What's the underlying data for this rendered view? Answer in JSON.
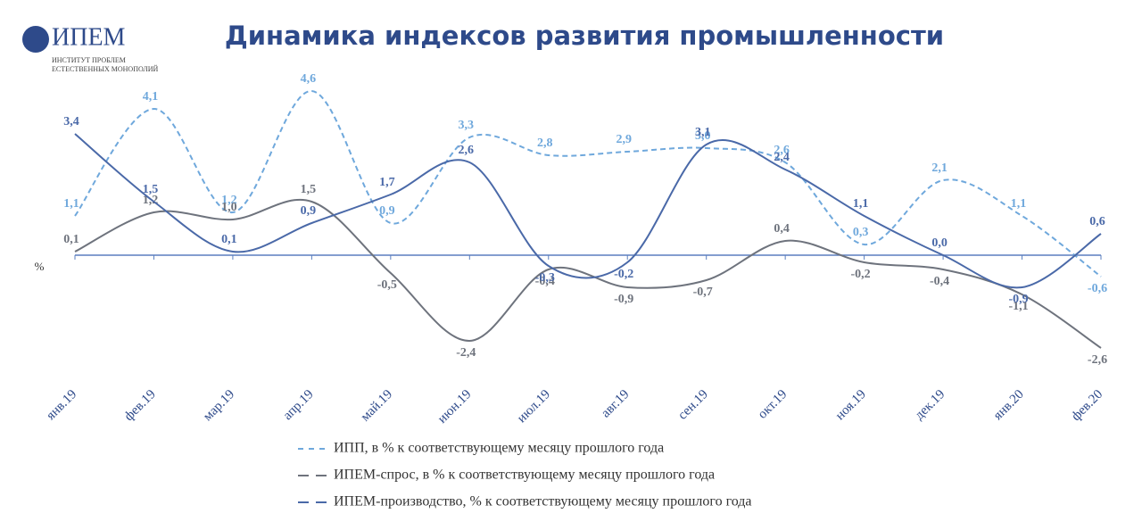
{
  "logo": {
    "name": "ИПЕМ",
    "line1": "ИНСТИТУТ ПРОБЛЕМ",
    "line2": "ЕСТЕСТВЕННЫХ МОНОПОЛИЙ"
  },
  "chart_data": {
    "type": "line",
    "title": "Динамика индексов развития промышленности",
    "y_label": "%",
    "categories": [
      "янв.19",
      "фев.19",
      "мар.19",
      "апр.19",
      "май.19",
      "июн.19",
      "июл.19",
      "авг.19",
      "сен.19",
      "окт.19",
      "ноя.19",
      "дек.19",
      "янв.20",
      "фев.20"
    ],
    "ylim": [
      -3.2,
      5
    ],
    "series": [
      {
        "name": "ИПП, в % к соответствующему месяцу прошлого года",
        "color": "#6fa8dc",
        "dashed": true,
        "values": [
          1.1,
          4.1,
          1.2,
          4.6,
          0.9,
          3.3,
          2.8,
          2.9,
          3.0,
          2.6,
          0.3,
          2.1,
          1.1,
          -0.6
        ],
        "value_labels": [
          "1,1",
          "4,1",
          "1,2",
          "4,6",
          "0,9",
          "3,3",
          "2,8",
          "2,9",
          "3,0",
          "2,6",
          "0,3",
          "2,1",
          "1,1",
          "-0,6"
        ]
      },
      {
        "name": "ИПЕМ-спрос, в % к соответствующему месяцу прошлого года",
        "color": "#6e737d",
        "dashed": false,
        "values": [
          0.1,
          1.2,
          1.0,
          1.5,
          -0.5,
          -2.4,
          -0.4,
          -0.9,
          -0.7,
          0.4,
          -0.2,
          -0.4,
          -1.1,
          -2.6
        ],
        "value_labels": [
          "0,1",
          "1,2",
          "1,0",
          "1,5",
          "-0,5",
          "-2,4",
          "-0,4",
          "-0,9",
          "-0,7",
          "0,4",
          "-0,2",
          "-0,4",
          "-1,1",
          "-2,6"
        ]
      },
      {
        "name": "ИПЕМ-производство, % к соответствующему месяцу прошлого года",
        "color": "#4a69a8",
        "dashed": false,
        "values": [
          3.4,
          1.5,
          0.1,
          0.9,
          1.7,
          2.6,
          -0.3,
          -0.2,
          3.1,
          2.4,
          1.1,
          0.0,
          -0.9,
          0.6
        ],
        "value_labels": [
          "3,4",
          "1,5",
          "0,1",
          "0,9",
          "1,7",
          "2,6",
          "-0,3",
          "-0,2",
          "3,1",
          "2,4",
          "1,1",
          "0,0",
          "-0,9",
          "0,6"
        ]
      }
    ]
  }
}
